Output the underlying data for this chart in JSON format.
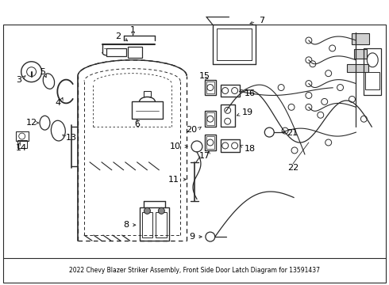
{
  "title": "2022 Chevy Blazer Striker Assembly, Front Side Door Latch Diagram for 13591437",
  "bg_color": "#ffffff",
  "line_color": "#2a2a2a",
  "label_color": "#000000",
  "fig_width": 4.9,
  "fig_height": 3.6,
  "dpi": 100
}
